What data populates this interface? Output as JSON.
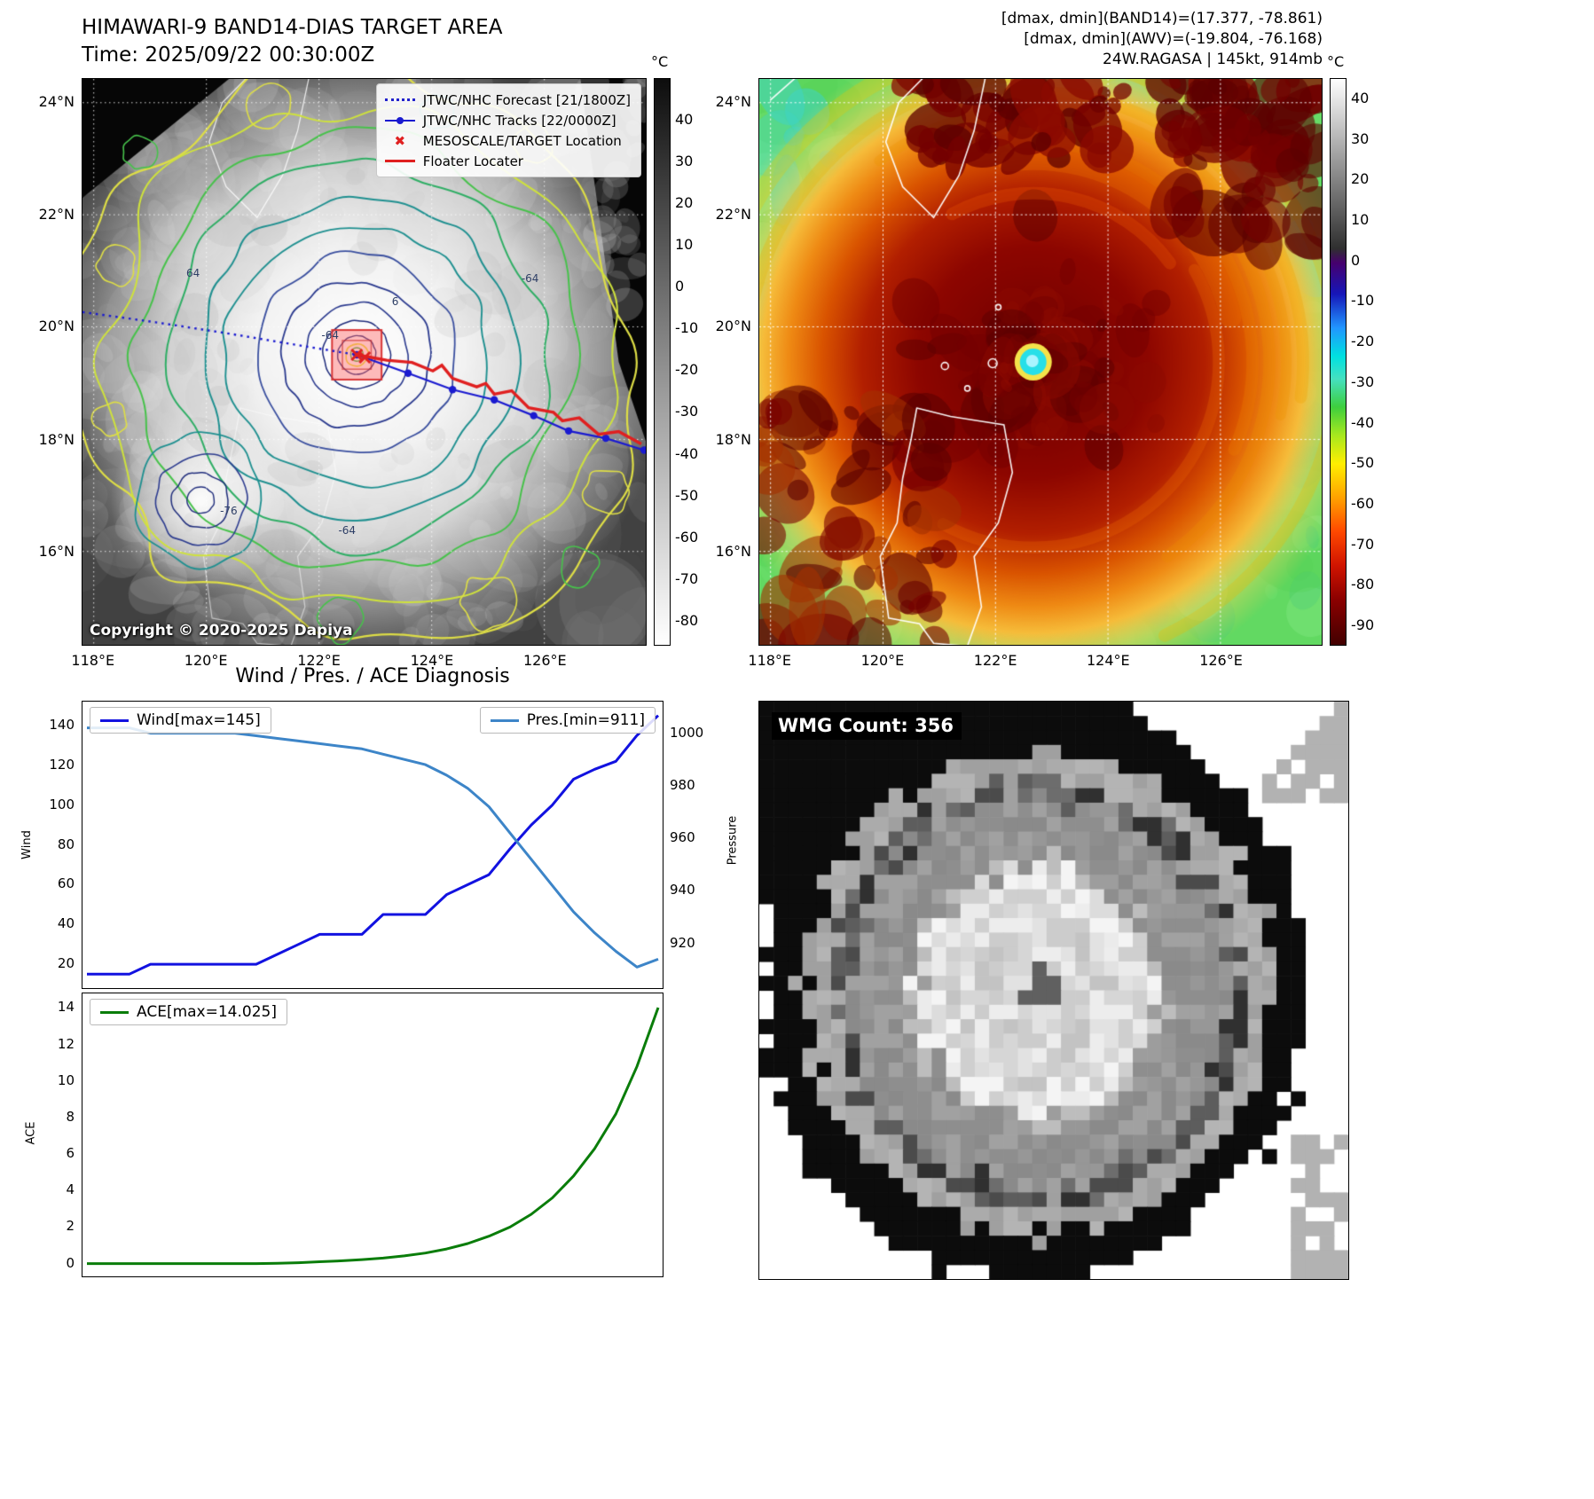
{
  "left_map": {
    "title": "HIMAWARI-9 BAND14-DIAS TARGET AREA",
    "time": "Time: 2025/09/22 00:30:00Z",
    "copyright": "Copyright © 2020-2025 Dapiya",
    "legend": [
      {
        "label": "JTWC/NHC Forecast [21/1800Z]",
        "type": "dotted",
        "color": "#2121cc"
      },
      {
        "label": "JTWC/NHC Tracks [22/0000Z]",
        "type": "line-dot",
        "color": "#1a1ad0"
      },
      {
        "label": "MESOSCALE/TARGET Location",
        "type": "x-marker",
        "color": "#e02020"
      },
      {
        "label": "Floater Locater",
        "type": "line",
        "color": "#e02020"
      }
    ],
    "track_colors": {
      "forecast": "#1a1ad0",
      "track": "#1a1ad0",
      "floater": "#e02020",
      "target_box": "#ff6060"
    },
    "lat_ticks": [
      "24°N",
      "22°N",
      "20°N",
      "18°N",
      "16°N"
    ],
    "lon_ticks": [
      "118°E",
      "120°E",
      "122°E",
      "124°E",
      "126°E"
    ],
    "contour_labels": [
      {
        "text": "-64",
        "fx": 0.44,
        "fy": 0.455
      },
      {
        "text": "6",
        "fx": 0.565,
        "fy": 0.395
      },
      {
        "text": "-64",
        "fx": 0.795,
        "fy": 0.355
      },
      {
        "text": "-64",
        "fx": 0.47,
        "fy": 0.8
      },
      {
        "text": "-76",
        "fx": 0.26,
        "fy": 0.765
      },
      {
        "text": "64",
        "fx": 0.2,
        "fy": 0.345
      }
    ],
    "colorbar": {
      "unit": "°C",
      "domain": [
        50,
        -86
      ],
      "tick_values": [
        40,
        30,
        20,
        10,
        0,
        -10,
        -20,
        -30,
        -40,
        -50,
        -60,
        -70,
        -80
      ],
      "stops": [
        {
          "at": 0,
          "color": "#0d0d0d"
        },
        {
          "at": 0.55,
          "color": "#9a9a9a"
        },
        {
          "at": 1,
          "color": "#ffffff"
        }
      ]
    }
  },
  "right_map": {
    "info_lines": [
      "[dmax, dmin](BAND14)=(17.377, -78.861)",
      "[dmax, dmin](AWV)=(-19.804, -76.168)",
      "24W.RAGASA | 145kt, 914mb"
    ],
    "lat_ticks": [
      "24°N",
      "22°N",
      "20°N",
      "18°N",
      "16°N"
    ],
    "lon_ticks": [
      "118°E",
      "120°E",
      "122°E",
      "124°E",
      "126°E"
    ],
    "storm_colors": {
      "eye": "#27dfe8",
      "eye_core": "#a9f4ff",
      "eye_ring": "#f4e24a",
      "cold_core": "#6e0000",
      "ring": "#b21f00",
      "outer": "#ef8a14",
      "background": "#62d962",
      "aqua": "#3fd4c4"
    },
    "colorbar": {
      "unit": "°C",
      "domain": [
        45,
        -95
      ],
      "tick_values": [
        40,
        30,
        20,
        10,
        0,
        -10,
        -20,
        -30,
        -40,
        -50,
        -60,
        -70,
        -80,
        -90
      ],
      "stops": [
        {
          "at": 0,
          "color": "#ffffff"
        },
        {
          "at": 0.3,
          "color": "#2f2f2f"
        },
        {
          "at": 0.325,
          "color": "#46006e"
        },
        {
          "at": 0.38,
          "color": "#1616b8"
        },
        {
          "at": 0.44,
          "color": "#2196ff"
        },
        {
          "at": 0.49,
          "color": "#00e0e0"
        },
        {
          "at": 0.53,
          "color": "#45e0c0"
        },
        {
          "at": 0.58,
          "color": "#3ecf3e"
        },
        {
          "at": 0.63,
          "color": "#a8e81e"
        },
        {
          "at": 0.68,
          "color": "#ffee00"
        },
        {
          "at": 0.74,
          "color": "#ffa200"
        },
        {
          "at": 0.8,
          "color": "#ff4800"
        },
        {
          "at": 0.86,
          "color": "#d01400"
        },
        {
          "at": 0.92,
          "color": "#8b0000"
        },
        {
          "at": 1,
          "color": "#420000"
        }
      ]
    }
  },
  "diagnosis": {
    "title": "Wind / Pres. / ACE Diagnosis"
  },
  "chart_data": [
    {
      "type": "line",
      "title": "Wind / Pres. / ACE Diagnosis",
      "series": [
        {
          "name": "Wind[max=145]",
          "axis": "left",
          "legend_pos": "left",
          "color": "#1212e0",
          "values": [
            15,
            15,
            15,
            20,
            20,
            20,
            20,
            20,
            20,
            25,
            30,
            35,
            35,
            35,
            45,
            45,
            45,
            55,
            60,
            65,
            78,
            90,
            100,
            113,
            118,
            122,
            135,
            145
          ]
        },
        {
          "name": "Pres.[min=911]",
          "axis": "right",
          "legend_pos": "right",
          "color": "#3d85c8",
          "values": [
            1002,
            1002,
            1002,
            1000,
            1000,
            1000,
            1000,
            1000,
            999,
            998,
            997,
            996,
            995,
            994,
            992,
            990,
            988,
            984,
            979,
            972,
            962,
            952,
            942,
            932,
            924,
            917,
            911,
            914
          ]
        }
      ],
      "left_axis": {
        "label": "Wind",
        "ticks": [
          20,
          40,
          60,
          80,
          100,
          120,
          140
        ],
        "lim": [
          8,
          152
        ]
      },
      "right_axis": {
        "label": "Pressure",
        "ticks": [
          920,
          940,
          960,
          980,
          1000
        ],
        "lim": [
          903,
          1012
        ]
      },
      "grid": false,
      "legend_position": "top"
    },
    {
      "type": "line",
      "series": [
        {
          "name": "ACE[max=14.025]",
          "axis": "left",
          "legend_pos": "left",
          "color": "#0a7d0a",
          "values": [
            0,
            0,
            0,
            0,
            0,
            0,
            0,
            0,
            0,
            0.02,
            0.05,
            0.1,
            0.15,
            0.22,
            0.3,
            0.42,
            0.58,
            0.8,
            1.1,
            1.5,
            2.0,
            2.7,
            3.6,
            4.8,
            6.3,
            8.2,
            10.8,
            14.025
          ]
        }
      ],
      "left_axis": {
        "label": "ACE",
        "ticks": [
          0,
          2,
          4,
          6,
          8,
          10,
          12,
          14
        ],
        "lim": [
          -0.7,
          14.8
        ]
      },
      "grid": false,
      "legend_position": "top-left"
    }
  ],
  "wmg": {
    "label": "WMG Count: 356"
  }
}
